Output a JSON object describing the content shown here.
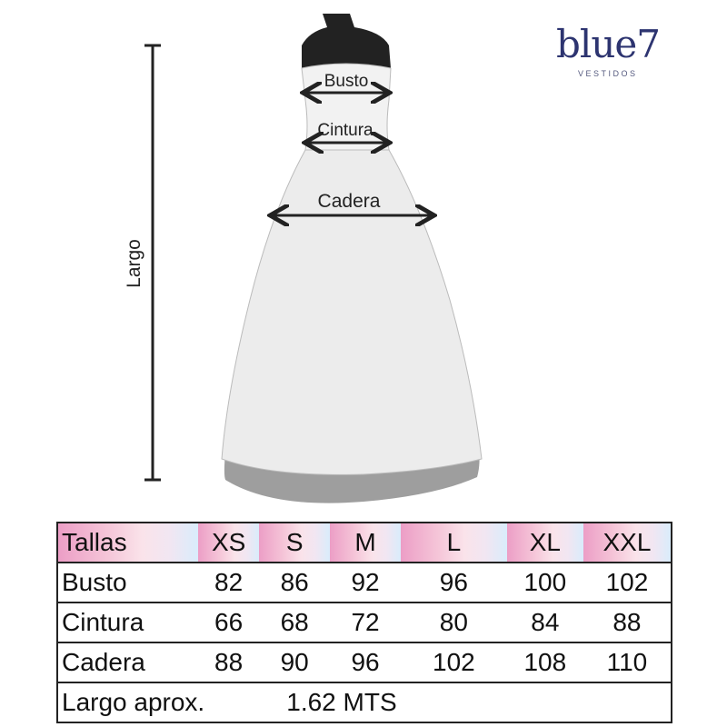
{
  "logo": {
    "brand": "blue7",
    "sub": "VESTIDOS",
    "color": "#2d3470"
  },
  "diagram": {
    "busto": "Busto",
    "cintura": "Cintura",
    "cadera": "Cadera",
    "largo": "Largo"
  },
  "table": {
    "header": [
      "Tallas",
      "XS",
      "S",
      "M",
      "L",
      "XL",
      "XXL"
    ],
    "rows": [
      [
        "Busto",
        "82",
        "86",
        "92",
        "96",
        "100",
        "102"
      ],
      [
        "Cintura",
        "66",
        "68",
        "72",
        "80",
        "84",
        "88"
      ],
      [
        "Cadera",
        "88",
        "90",
        "96",
        "102",
        "108",
        "110"
      ]
    ],
    "largo_label": "Largo aprox.",
    "largo_value": "1.62 MTS"
  }
}
